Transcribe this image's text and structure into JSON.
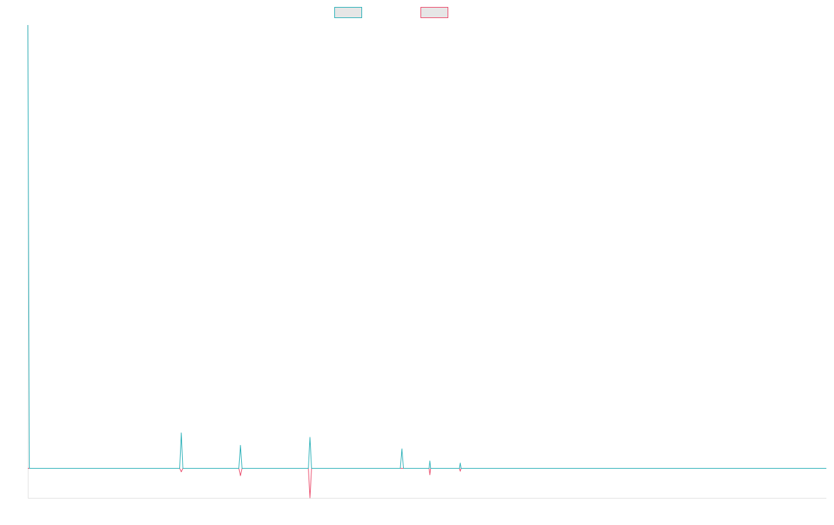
{
  "colors": {
    "background": "#ffffff",
    "series_1": "#2ab0b8",
    "series_2": "#ea4c6c",
    "legend_fill": "#e6e6e6",
    "axis": "#e3e3e3"
  },
  "chart_data": {
    "type": "line",
    "title": "",
    "xlabel": "",
    "ylabel": "",
    "grid": false,
    "legend": {
      "placement": "top-center",
      "entries": [
        "",
        ""
      ]
    },
    "x_count": 1000,
    "ylim": [
      -100,
      1500
    ],
    "series": [
      {
        "color": "#2ab0b8",
        "points": [
          {
            "x": 0,
            "y": 1500
          },
          {
            "x": 2,
            "y": 0
          },
          {
            "x": 190,
            "y": 0
          },
          {
            "x": 192,
            "y": 120
          },
          {
            "x": 194,
            "y": 0
          },
          {
            "x": 264,
            "y": 0
          },
          {
            "x": 266,
            "y": 78
          },
          {
            "x": 268,
            "y": 0
          },
          {
            "x": 351,
            "y": 0
          },
          {
            "x": 353,
            "y": 105
          },
          {
            "x": 355,
            "y": 0
          },
          {
            "x": 466,
            "y": 0
          },
          {
            "x": 468,
            "y": 66
          },
          {
            "x": 470,
            "y": 0
          },
          {
            "x": 502,
            "y": 0
          },
          {
            "x": 503,
            "y": 25
          },
          {
            "x": 504,
            "y": 0
          },
          {
            "x": 540,
            "y": 0
          },
          {
            "x": 541,
            "y": 18
          },
          {
            "x": 542,
            "y": 0
          },
          {
            "x": 999,
            "y": 0
          }
        ]
      },
      {
        "color": "#ea4c6c",
        "points": [
          {
            "x": 0,
            "y": 0
          },
          {
            "x": 190,
            "y": 0
          },
          {
            "x": 192,
            "y": -12
          },
          {
            "x": 194,
            "y": 0
          },
          {
            "x": 264,
            "y": 0
          },
          {
            "x": 266,
            "y": -25
          },
          {
            "x": 268,
            "y": 0
          },
          {
            "x": 351,
            "y": 0
          },
          {
            "x": 353,
            "y": -100
          },
          {
            "x": 355,
            "y": 0
          },
          {
            "x": 502,
            "y": 0
          },
          {
            "x": 503,
            "y": -22
          },
          {
            "x": 504,
            "y": 0
          },
          {
            "x": 540,
            "y": 0
          },
          {
            "x": 541,
            "y": -10
          },
          {
            "x": 542,
            "y": 0
          },
          {
            "x": 999,
            "y": 0
          }
        ]
      }
    ]
  }
}
